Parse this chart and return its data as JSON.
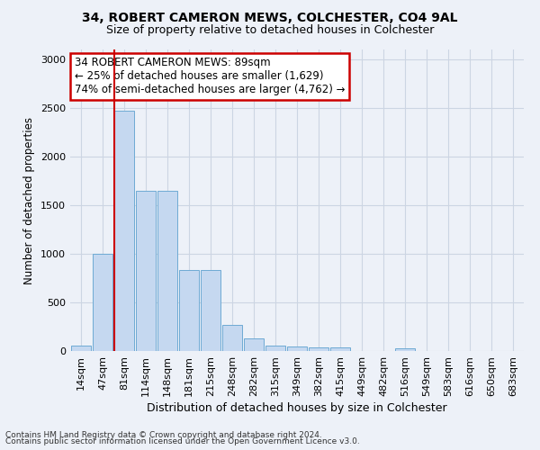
{
  "title1": "34, ROBERT CAMERON MEWS, COLCHESTER, CO4 9AL",
  "title2": "Size of property relative to detached houses in Colchester",
  "xlabel": "Distribution of detached houses by size in Colchester",
  "ylabel": "Number of detached properties",
  "categories": [
    "14sqm",
    "47sqm",
    "81sqm",
    "114sqm",
    "148sqm",
    "181sqm",
    "215sqm",
    "248sqm",
    "282sqm",
    "315sqm",
    "349sqm",
    "382sqm",
    "415sqm",
    "449sqm",
    "482sqm",
    "516sqm",
    "549sqm",
    "583sqm",
    "616sqm",
    "650sqm",
    "683sqm"
  ],
  "values": [
    60,
    1000,
    2470,
    1650,
    1650,
    830,
    830,
    270,
    130,
    60,
    50,
    40,
    35,
    0,
    0,
    30,
    0,
    0,
    0,
    0,
    0
  ],
  "bar_color": "#c5d8f0",
  "bar_edge_color": "#6eaad4",
  "vline_bar_index": 2,
  "annotation_text": "34 ROBERT CAMERON MEWS: 89sqm\n← 25% of detached houses are smaller (1,629)\n74% of semi-detached houses are larger (4,762) →",
  "annotation_box_color": "#ffffff",
  "annotation_box_edge_color": "#cc0000",
  "vline_color": "#cc0000",
  "ylim": [
    0,
    3100
  ],
  "yticks": [
    0,
    500,
    1000,
    1500,
    2000,
    2500,
    3000
  ],
  "grid_color": "#ccd5e3",
  "background_color": "#edf1f8",
  "footer1": "Contains HM Land Registry data © Crown copyright and database right 2024.",
  "footer2": "Contains public sector information licensed under the Open Government Licence v3.0."
}
